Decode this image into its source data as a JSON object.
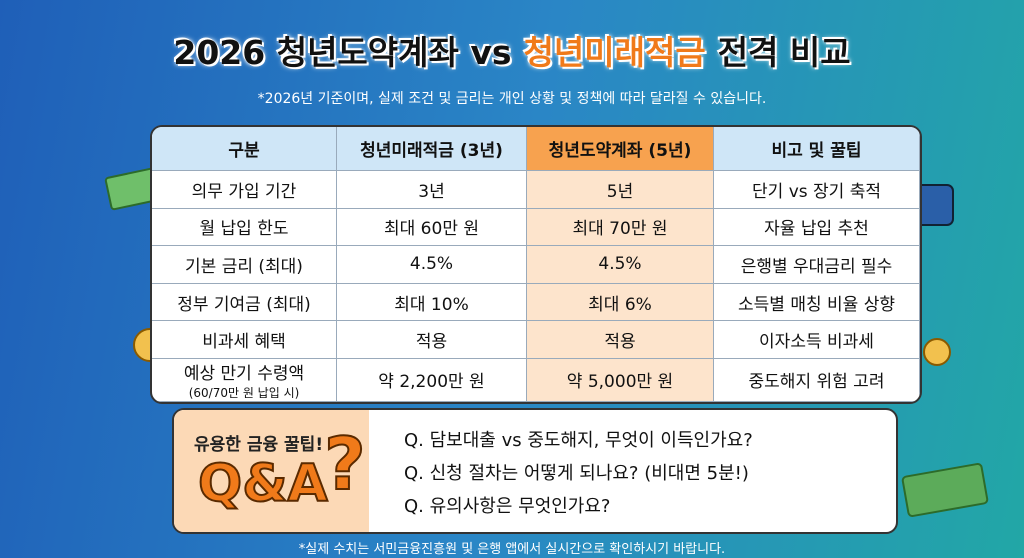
{
  "header": {
    "title_start": "2026 청년도약계좌 vs",
    "title_highlight": "청년미래적금",
    "title_end": "전격 비교",
    "subtitle": "*2026년 기준이며, 실제 조건 및 금리는 개인 상황 및 정책에 따라 달라질 수 있습니다."
  },
  "table": {
    "columns": [
      "구분",
      "청년미래적금 (3년)",
      "청년도약계좌 (5년)",
      "비고 및 꿀팁"
    ],
    "rows": [
      [
        "의무 가입 기간",
        "3년",
        "5년",
        "단기 vs 장기 축적"
      ],
      [
        "월 납입 한도",
        "최대 60만 원",
        "최대 70만 원",
        "자율 납입 추천"
      ],
      [
        "기본 금리 (최대)",
        "4.5%",
        "4.5%",
        "은행별 우대금리 필수"
      ],
      [
        "정부 기여금 (최대)",
        "최대 10%",
        "최대 6%",
        "소득별 매칭 비율 상향"
      ],
      [
        "비과세 혜택",
        "적용",
        "적용",
        "이자소득 비과세"
      ],
      [
        "예상 만기 수령액",
        "약 2,200만 원",
        "약 5,000만 원",
        "중도해지 위험 고려"
      ]
    ],
    "row_note": "(60/70만 원 납입 시)"
  },
  "qa": {
    "label": "유용한 금융 꿀팁!",
    "big": "Q&A",
    "mark": "?",
    "questions": [
      "Q. 담보대출 vs 중도해지, 무엇이 이득인가요?",
      "Q. 신청 절차는 어떻게 되나요? (비대면 5분!)",
      "Q. 유의사항은 무엇인가요?"
    ]
  },
  "footer": {
    "note": "*실제 수치는 서민금융진흥원 및 은행 앱에서 실시간으로 확인하시기 바랍니다."
  }
}
